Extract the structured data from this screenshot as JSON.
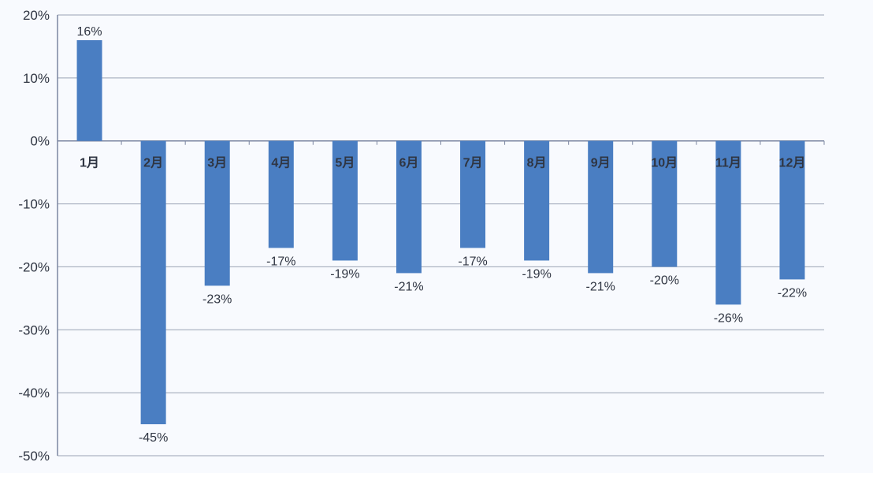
{
  "chart_data": {
    "type": "bar",
    "title": "",
    "xlabel": "",
    "ylabel": "",
    "categories": [
      "1月",
      "2月",
      "3月",
      "4月",
      "5月",
      "6月",
      "7月",
      "8月",
      "9月",
      "10月",
      "11月",
      "12月"
    ],
    "values": [
      16,
      -45,
      -23,
      -17,
      -19,
      -21,
      -17,
      -19,
      -21,
      -20,
      -26,
      -22
    ],
    "data_labels": [
      "16%",
      "-45%",
      "-23%",
      "-17%",
      "-19%",
      "-21%",
      "-17%",
      "-19%",
      "-21%",
      "-20%",
      "-26%",
      "-22%"
    ],
    "ylim": [
      -50,
      20
    ],
    "yticks": [
      20,
      10,
      0,
      -10,
      -20,
      -30,
      -40,
      -50
    ],
    "ytick_labels": [
      "20%",
      "10%",
      "0%",
      "-10%",
      "-20%",
      "-30%",
      "-40%",
      "-50%"
    ],
    "grid": true,
    "legend": "none",
    "colors": {
      "bar": "#4a7ec2",
      "grid": "#9aa3b4",
      "axis": "#7b86a0",
      "background": "#f8fafe",
      "text": "#2f3542"
    }
  }
}
